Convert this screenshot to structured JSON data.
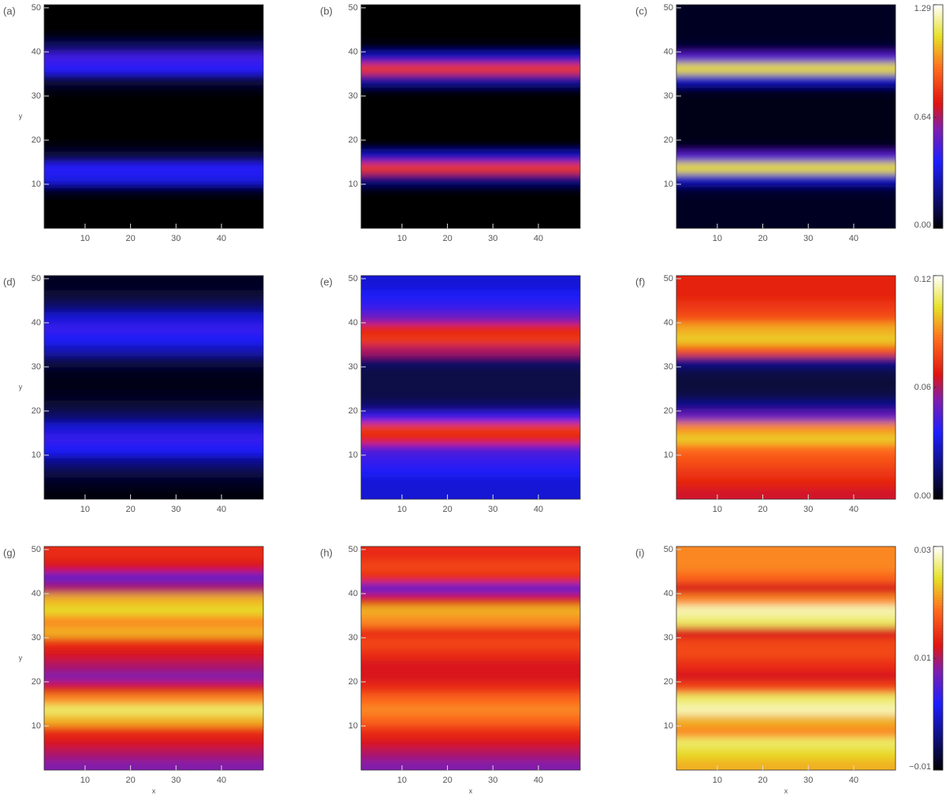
{
  "chart_data": [
    {
      "type": "heatmap",
      "label": "(a)",
      "y_label": "y",
      "xlim": [
        1,
        49.2
      ],
      "ylim": [
        0,
        50.7
      ],
      "xticks": [
        10,
        20,
        30,
        40
      ],
      "yticks": [
        10,
        20,
        30,
        40,
        50
      ],
      "clim": [
        0,
        1.29
      ],
      "y": [
        1.25,
        3.75,
        6.25,
        8.75,
        11.25,
        13.75,
        16.25,
        18.75,
        21.25,
        23.75,
        26.25,
        28.75,
        31.25,
        33.75,
        36.25,
        38.75,
        41.25,
        43.75,
        46.25,
        48.75
      ],
      "values": [
        0,
        0,
        0,
        0.05,
        0.35,
        0.4,
        0.1,
        0.02,
        0,
        0,
        0,
        0,
        0.02,
        0.1,
        0.4,
        0.45,
        0.15,
        0.02,
        0,
        0
      ]
    },
    {
      "type": "heatmap",
      "label": "(b)",
      "xlim": [
        1,
        49.2
      ],
      "ylim": [
        0,
        50.7
      ],
      "xticks": [
        10,
        20,
        30,
        40
      ],
      "yticks": [
        10,
        20,
        30,
        40,
        50
      ],
      "clim": [
        0,
        1.29
      ],
      "y": [
        1.25,
        3.75,
        6.25,
        8.75,
        11.25,
        13.75,
        16.25,
        18.75,
        21.25,
        23.75,
        26.25,
        28.75,
        31.25,
        33.75,
        36.25,
        38.75,
        41.25,
        43.75,
        46.25,
        48.75
      ],
      "values": [
        0,
        0,
        0,
        0.02,
        0.2,
        0.8,
        0.3,
        0.02,
        0,
        0,
        0,
        0,
        0.02,
        0.25,
        0.8,
        0.3,
        0.03,
        0,
        0,
        0
      ]
    },
    {
      "type": "heatmap",
      "label": "(c)",
      "xlim": [
        1,
        49.2
      ],
      "ylim": [
        0,
        50.7
      ],
      "xticks": [
        10,
        20,
        30,
        40
      ],
      "yticks": [
        10,
        20,
        30,
        40,
        50
      ],
      "clim": [
        0,
        1.29
      ],
      "y": [
        1.25,
        3.75,
        6.25,
        8.75,
        11.25,
        13.75,
        16.25,
        18.75,
        21.25,
        23.75,
        26.25,
        28.75,
        31.25,
        33.75,
        36.25,
        38.75,
        41.25,
        43.75,
        46.25,
        48.75
      ],
      "values": [
        0.05,
        0.05,
        0.05,
        0.08,
        0.3,
        1.1,
        0.5,
        0.05,
        0.03,
        0.03,
        0.03,
        0.03,
        0.05,
        0.3,
        1.1,
        0.5,
        0.08,
        0.05,
        0.05,
        0.05
      ],
      "colorbar_ticks": [
        {
          "value": 0,
          "label": "0.00"
        },
        0.64,
        1.29
      ]
    },
    {
      "type": "heatmap",
      "label": "(d)",
      "y_label": "y",
      "xlim": [
        1,
        49.2
      ],
      "ylim": [
        0,
        50.7
      ],
      "xticks": [
        10,
        20,
        30,
        40
      ],
      "yticks": [
        10,
        20,
        30,
        40,
        50
      ],
      "clim": [
        0,
        0.12
      ],
      "y": [
        1.25,
        3.75,
        6.25,
        8.75,
        11.25,
        13.75,
        16.25,
        18.75,
        21.25,
        23.75,
        26.25,
        28.75,
        31.25,
        33.75,
        36.25,
        38.75,
        41.25,
        43.75,
        46.25,
        48.75
      ],
      "values": [
        0.002,
        0.005,
        0.01,
        0.02,
        0.035,
        0.04,
        0.03,
        0.015,
        0.008,
        0.004,
        0.003,
        0.004,
        0.01,
        0.025,
        0.035,
        0.04,
        0.03,
        0.015,
        0.008,
        0.005
      ]
    },
    {
      "type": "heatmap",
      "label": "(e)",
      "xlim": [
        1,
        49.2
      ],
      "ylim": [
        0,
        50.7
      ],
      "xticks": [
        10,
        20,
        30,
        40
      ],
      "yticks": [
        10,
        20,
        30,
        40,
        50
      ],
      "clim": [
        0,
        0.12
      ],
      "y": [
        1.25,
        3.75,
        6.25,
        8.75,
        11.25,
        13.75,
        16.25,
        18.75,
        21.25,
        23.75,
        26.25,
        28.75,
        31.25,
        33.75,
        36.25,
        38.75,
        41.25,
        43.75,
        46.25,
        48.75
      ],
      "values": [
        0.03,
        0.03,
        0.035,
        0.04,
        0.045,
        0.07,
        0.075,
        0.04,
        0.015,
        0.01,
        0.01,
        0.01,
        0.015,
        0.06,
        0.075,
        0.07,
        0.05,
        0.04,
        0.035,
        0.03
      ]
    },
    {
      "type": "heatmap",
      "label": "(f)",
      "xlim": [
        1,
        49.2
      ],
      "ylim": [
        0,
        50.7
      ],
      "xticks": [
        10,
        20,
        30,
        40
      ],
      "yticks": [
        10,
        20,
        30,
        40,
        50
      ],
      "clim": [
        0,
        0.12
      ],
      "y": [
        1.25,
        3.75,
        6.25,
        8.75,
        11.25,
        13.75,
        16.25,
        18.75,
        21.25,
        23.75,
        26.25,
        28.75,
        31.25,
        33.75,
        36.25,
        38.75,
        41.25,
        43.75,
        46.25,
        48.75
      ],
      "values": [
        0.065,
        0.07,
        0.075,
        0.08,
        0.085,
        0.1,
        0.09,
        0.05,
        0.02,
        0.01,
        0.008,
        0.01,
        0.02,
        0.08,
        0.1,
        0.095,
        0.08,
        0.075,
        0.07,
        0.07
      ],
      "colorbar_ticks": [
        {
          "value": 0,
          "label": "0.00"
        },
        0.06,
        0.12
      ]
    },
    {
      "type": "heatmap",
      "label": "(g)",
      "y_label": "y",
      "x_label": "x",
      "xlim": [
        1,
        49.2
      ],
      "ylim": [
        0,
        50.7
      ],
      "xticks": [
        10,
        20,
        30,
        40
      ],
      "yticks": [
        10,
        20,
        30,
        40,
        50
      ],
      "clim": [
        -0.01,
        0.03
      ],
      "y": [
        1.25,
        3.75,
        6.25,
        8.75,
        11.25,
        13.75,
        16.25,
        18.75,
        21.25,
        23.75,
        26.25,
        28.75,
        31.25,
        33.75,
        36.25,
        38.75,
        41.25,
        43.75,
        46.25,
        48.75
      ],
      "values": [
        0.008,
        0.01,
        0.012,
        0.014,
        0.022,
        0.026,
        0.02,
        0.012,
        0.008,
        0.01,
        0.012,
        0.014,
        0.022,
        0.02,
        0.024,
        0.022,
        0.01,
        0.006,
        0.012,
        0.014
      ]
    },
    {
      "type": "heatmap",
      "label": "(h)",
      "x_label": "x",
      "xlim": [
        1,
        49.2
      ],
      "ylim": [
        0,
        50.7
      ],
      "xticks": [
        10,
        20,
        30,
        40
      ],
      "yticks": [
        10,
        20,
        30,
        40,
        50
      ],
      "clim": [
        -0.01,
        0.03
      ],
      "y": [
        1.25,
        3.75,
        6.25,
        8.75,
        11.25,
        13.75,
        16.25,
        18.75,
        21.25,
        23.75,
        26.25,
        28.75,
        31.25,
        33.75,
        36.25,
        38.75,
        41.25,
        43.75,
        46.25,
        48.75
      ],
      "values": [
        0.008,
        0.01,
        0.012,
        0.014,
        0.018,
        0.02,
        0.018,
        0.014,
        0.012,
        0.012,
        0.014,
        0.016,
        0.014,
        0.02,
        0.022,
        0.012,
        0.006,
        0.014,
        0.016,
        0.014
      ]
    },
    {
      "type": "heatmap",
      "label": "(i)",
      "x_label": "x",
      "xlim": [
        1,
        49.2
      ],
      "ylim": [
        0,
        50.7
      ],
      "xticks": [
        10,
        20,
        30,
        40
      ],
      "yticks": [
        10,
        20,
        30,
        40,
        50
      ],
      "clim": [
        -0.01,
        0.03
      ],
      "y": [
        1.25,
        3.75,
        6.25,
        8.75,
        11.25,
        13.75,
        16.25,
        18.75,
        21.25,
        23.75,
        26.25,
        28.75,
        31.25,
        33.75,
        36.25,
        38.75,
        41.25,
        43.75,
        46.25,
        48.75
      ],
      "values": [
        0.022,
        0.024,
        0.026,
        0.02,
        0.022,
        0.028,
        0.026,
        0.016,
        0.012,
        0.014,
        0.016,
        0.016,
        0.012,
        0.026,
        0.028,
        0.02,
        0.012,
        0.018,
        0.02,
        0.02
      ],
      "colorbar_ticks": [
        {
          "value": -0.01,
          "label": "−0.01"
        },
        0.01,
        0.03
      ]
    }
  ]
}
